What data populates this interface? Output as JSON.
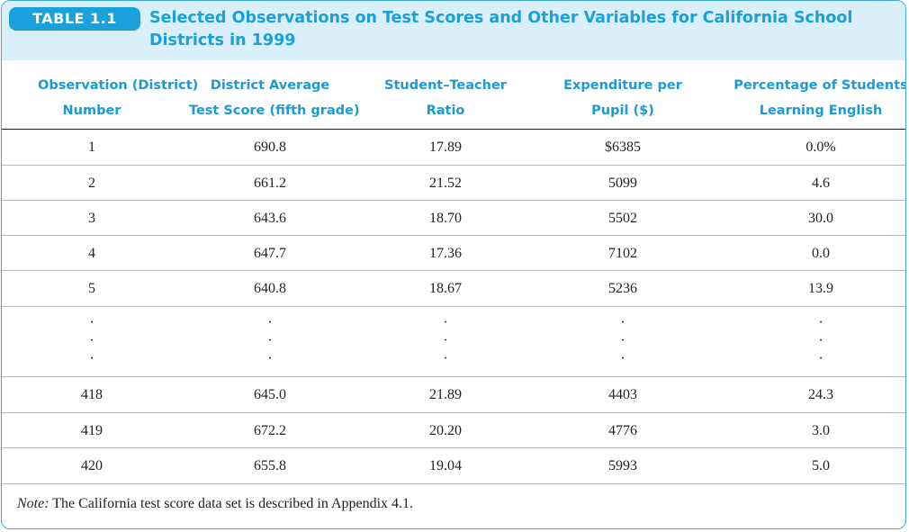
{
  "table": {
    "badge": "TABLE 1.1",
    "title_line1": "Selected Observations on Test Scores and Other Variables for California School",
    "title_line2": "Districts in 1999",
    "columns": [
      {
        "line1": "Observation (District)",
        "line2": "Number"
      },
      {
        "line1": "District Average",
        "line2": "Test Score (fifth grade)"
      },
      {
        "line1": "Student–Teacher",
        "line2": "Ratio"
      },
      {
        "line1": "Expenditure per",
        "line2": "Pupil ($)"
      },
      {
        "line1": "Percentage of Students",
        "line2": "Learning English"
      }
    ],
    "rows": [
      [
        "1",
        "690.8",
        "17.89",
        "$6385",
        "0.0%"
      ],
      [
        "2",
        "661.2",
        "21.52",
        "5099",
        "4.6"
      ],
      [
        "3",
        "643.6",
        "18.70",
        "5502",
        "30.0"
      ],
      [
        "4",
        "647.7",
        "17.36",
        "7102",
        "0.0"
      ],
      [
        "5",
        "640.8",
        "18.67",
        "5236",
        "13.9"
      ],
      [
        "·\n·\n·",
        "·\n·\n·",
        "·\n·\n·",
        "·\n·\n·",
        "·\n·\n·"
      ],
      [
        "418",
        "645.0",
        "21.89",
        "4403",
        "24.3"
      ],
      [
        "419",
        "672.2",
        "20.20",
        "4776",
        "3.0"
      ],
      [
        "420",
        "655.8",
        "19.04",
        "5993",
        "5.0"
      ]
    ],
    "note_label": "Note:",
    "note_text": " The California test score data set is described in Appendix 4.1."
  }
}
